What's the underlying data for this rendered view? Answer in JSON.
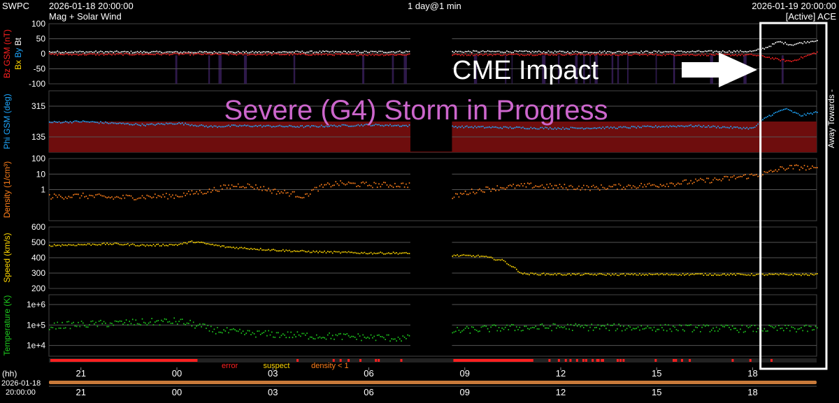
{
  "header": {
    "org": "SWPC",
    "start_time": "2026-01-18 20:00:00",
    "subtitle": "Mag + Solar Wind",
    "span": "1 day@1 min",
    "end_time": "2026-01-19 20:00:00",
    "source": "[Active] ACE"
  },
  "colors": {
    "background": "#000000",
    "grid": "#555555",
    "bt": "#ffffff",
    "bz": "#ff2020",
    "bx": "#ffd700",
    "by": "#1ea8ff",
    "phi": "#1ea8ff",
    "density": "#ff7f1a",
    "speed": "#ffd700",
    "temperature": "#1ecc1e",
    "storm": "#cc66cc",
    "phi_band": "#6e0d0d",
    "mag_band": "#3a1f5c"
  },
  "annotations": {
    "cme_label": "CME Impact",
    "storm_label": "Severe (G4) Storm in Progress",
    "away_towards": "Away Towards -"
  },
  "chart_data": {
    "type": "line",
    "title": "Mag + Solar Wind",
    "x": {
      "unit": "hours since 2026-01-18 20:00:00",
      "range": [
        0,
        24
      ],
      "tick_hours": [
        1,
        4,
        7,
        10,
        13,
        16,
        19,
        22
      ],
      "tick_labels": [
        "21",
        "00",
        "03",
        "06",
        "09",
        "12",
        "15",
        "18"
      ],
      "axis_label": "(hh)",
      "axis_start_date": "2026-01-18",
      "axis_start_time": "20:00:00"
    },
    "data_gap_hours": [
      11.3,
      12.6
    ],
    "cme_window_hours": [
      22.2,
      24
    ],
    "panels": [
      {
        "id": "mag",
        "ylabel": "Bz GSM (nT)",
        "ylabel_extra": [
          "Bx",
          "By",
          "Bt"
        ],
        "scale": "linear",
        "ylim": [
          -100,
          100
        ],
        "ticks": [
          -100,
          -50,
          0,
          50,
          100
        ],
        "tick_labels": [
          "-100",
          "-50",
          "0",
          "50",
          "100"
        ],
        "series": [
          {
            "name": "Bt",
            "color": "#ffffff",
            "points": [
              [
                0,
                6
              ],
              [
                2,
                6
              ],
              [
                4,
                5
              ],
              [
                6,
                5
              ],
              [
                8,
                6
              ],
              [
                10,
                6
              ],
              [
                11.3,
                7
              ],
              [
                12.6,
                7
              ],
              [
                14,
                7
              ],
              [
                16,
                6
              ],
              [
                18,
                6
              ],
              [
                20,
                7
              ],
              [
                22,
                8
              ],
              [
                22.4,
                20
              ],
              [
                22.8,
                40
              ],
              [
                23.2,
                30
              ],
              [
                23.6,
                38
              ],
              [
                24,
                45
              ]
            ]
          },
          {
            "name": "Bz",
            "color": "#ff2020",
            "points": [
              [
                0,
                -2
              ],
              [
                2,
                -2
              ],
              [
                4,
                -1
              ],
              [
                6,
                -2
              ],
              [
                8,
                -2
              ],
              [
                10,
                -3
              ],
              [
                11.3,
                -3
              ],
              [
                12.6,
                -3
              ],
              [
                14,
                -3
              ],
              [
                16,
                -2
              ],
              [
                18,
                -3
              ],
              [
                20,
                -3
              ],
              [
                22,
                -4
              ],
              [
                22.4,
                -10
              ],
              [
                22.8,
                -20
              ],
              [
                23.2,
                -25
              ],
              [
                23.6,
                -10
              ],
              [
                24,
                5
              ]
            ]
          }
        ]
      },
      {
        "id": "phi",
        "ylabel": "Phi GSM (deg)",
        "scale": "linear",
        "ylim": [
          45,
          405
        ],
        "ticks": [
          135,
          315
        ],
        "tick_labels": [
          "135",
          "315"
        ],
        "series": [
          {
            "name": "Phi",
            "color": "#1ea8ff",
            "points": [
              [
                0,
                220
              ],
              [
                1,
                225
              ],
              [
                2,
                215
              ],
              [
                3,
                205
              ],
              [
                4,
                215
              ],
              [
                5,
                195
              ],
              [
                6,
                200
              ],
              [
                8,
                195
              ],
              [
                10,
                205
              ],
              [
                11.3,
                200
              ],
              [
                12.6,
                195
              ],
              [
                14,
                190
              ],
              [
                16,
                185
              ],
              [
                18,
                190
              ],
              [
                20,
                200
              ],
              [
                22,
                185
              ],
              [
                22.4,
                250
              ],
              [
                23,
                300
              ],
              [
                23.5,
                260
              ],
              [
                24,
                280
              ]
            ]
          }
        ]
      },
      {
        "id": "density",
        "ylabel": "Density (1/cm³)",
        "scale": "log",
        "ylim": [
          0.01,
          100
        ],
        "ticks": [
          1,
          10,
          100
        ],
        "tick_labels": [
          "1",
          "10",
          "100"
        ],
        "series": [
          {
            "name": "Density",
            "color": "#ff7f1a",
            "points": [
              [
                0,
                0.35
              ],
              [
                1,
                0.4
              ],
              [
                2,
                0.3
              ],
              [
                3,
                0.35
              ],
              [
                4,
                0.4
              ],
              [
                5,
                0.8
              ],
              [
                6,
                2
              ],
              [
                7,
                0.8
              ],
              [
                8,
                0.35
              ],
              [
                9,
                2.5
              ],
              [
                10,
                2
              ],
              [
                11,
                2
              ],
              [
                11.3,
                2
              ],
              [
                12.6,
                0.3
              ],
              [
                13,
                0.6
              ],
              [
                14,
                1.3
              ],
              [
                15,
                1.8
              ],
              [
                16,
                1.5
              ],
              [
                17,
                1.3
              ],
              [
                18,
                1.6
              ],
              [
                19,
                2
              ],
              [
                20,
                3
              ],
              [
                21,
                4.5
              ],
              [
                22,
                8
              ],
              [
                22.5,
                12
              ],
              [
                23,
                25
              ],
              [
                23.5,
                28
              ],
              [
                24,
                20
              ]
            ]
          }
        ]
      },
      {
        "id": "speed",
        "ylabel": "Speed (km/s)",
        "scale": "linear",
        "ylim": [
          200,
          600
        ],
        "ticks": [
          200,
          300,
          400,
          500,
          600
        ],
        "tick_labels": [
          "200",
          "300",
          "400",
          "500",
          "600"
        ],
        "series": [
          {
            "name": "Speed",
            "color": "#ffd700",
            "points": [
              [
                0,
                480
              ],
              [
                1,
                485
              ],
              [
                2,
                490
              ],
              [
                3,
                480
              ],
              [
                4,
                485
              ],
              [
                4.5,
                505
              ],
              [
                5.5,
                470
              ],
              [
                7,
                450
              ],
              [
                8,
                440
              ],
              [
                9,
                435
              ],
              [
                10,
                430
              ],
              [
                11,
                430
              ],
              [
                11.3,
                425
              ],
              [
                12.6,
                415
              ],
              [
                13.5,
                410
              ],
              [
                14.2,
                380
              ],
              [
                14.8,
                295
              ],
              [
                16,
                292
              ],
              [
                18,
                290
              ],
              [
                20,
                292
              ],
              [
                22,
                290
              ],
              [
                24,
                290
              ]
            ]
          }
        ]
      },
      {
        "id": "temperature",
        "ylabel": "Temperature (K)",
        "scale": "log",
        "ylim": [
          3000,
          3000000
        ],
        "ticks": [
          10000,
          100000,
          1000000
        ],
        "tick_labels": [
          "1e+4",
          "1e+5",
          "1e+6"
        ],
        "series": [
          {
            "name": "Temperature",
            "color": "#1ecc1e",
            "points": [
              [
                0,
                90000
              ],
              [
                2,
                120000
              ],
              [
                4,
                150000
              ],
              [
                5,
                60000
              ],
              [
                6,
                40000
              ],
              [
                8,
                30000
              ],
              [
                10,
                25000
              ],
              [
                11.3,
                22000
              ],
              [
                12.6,
                50000
              ],
              [
                14,
                70000
              ],
              [
                16,
                80000
              ],
              [
                18,
                75000
              ],
              [
                20,
                70000
              ],
              [
                22,
                65000
              ],
              [
                24,
                65000
              ]
            ]
          }
        ]
      }
    ],
    "status_legend": [
      "error",
      "suspect",
      "density < 1"
    ]
  }
}
